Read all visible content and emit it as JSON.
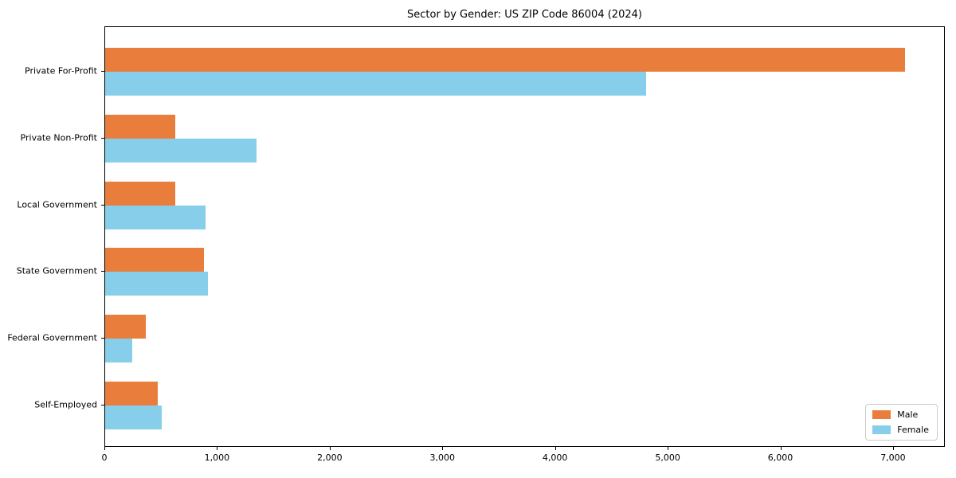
{
  "chart_data": {
    "type": "bar",
    "orientation": "horizontal",
    "title": "Sector by Gender: US ZIP Code 86004 (2024)",
    "categories": [
      "Private For-Profit",
      "Private Non-Profit",
      "Local Government",
      "State Government",
      "Federal Government",
      "Self-Employed"
    ],
    "series": [
      {
        "name": "Male",
        "color": "#e87d3c",
        "values": [
          7100,
          620,
          620,
          875,
          360,
          470
        ]
      },
      {
        "name": "Female",
        "color": "#87ceeb",
        "values": [
          4800,
          1340,
          890,
          915,
          240,
          500
        ]
      }
    ],
    "xlabel": "",
    "ylabel": "",
    "xlim": [
      0,
      7460
    ],
    "xticks": [
      0,
      1000,
      2000,
      3000,
      4000,
      5000,
      6000,
      7000
    ],
    "xtick_labels": [
      "0",
      "1,000",
      "2,000",
      "3,000",
      "4,000",
      "5,000",
      "6,000",
      "7,000"
    ],
    "grid": false,
    "legend": {
      "position": "lower right",
      "entries": [
        "Male",
        "Female"
      ]
    }
  }
}
